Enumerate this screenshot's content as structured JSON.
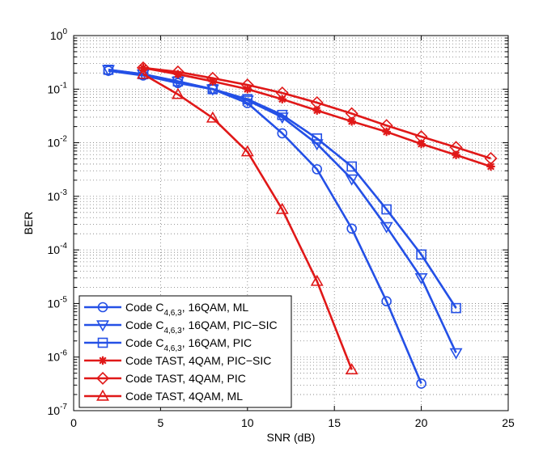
{
  "chart_data": {
    "type": "line",
    "title": "",
    "xlabel": "SNR (dB)",
    "ylabel": "BER",
    "xlim": [
      0,
      25
    ],
    "ylim_log10": [
      -7,
      0
    ],
    "yscale": "log",
    "grid": true,
    "legend_position": "bottom-left",
    "x_ticks": [
      0,
      5,
      10,
      15,
      20,
      25
    ],
    "x_tick_labels": [
      "0",
      "5",
      "10",
      "15",
      "20",
      "25"
    ],
    "y_tick_labels": [
      {
        "base": "10",
        "exp": "-7"
      },
      {
        "base": "10",
        "exp": "-6"
      },
      {
        "base": "10",
        "exp": "-5"
      },
      {
        "base": "10",
        "exp": "-4"
      },
      {
        "base": "10",
        "exp": "-3"
      },
      {
        "base": "10",
        "exp": "-2"
      },
      {
        "base": "10",
        "exp": "-1"
      },
      {
        "base": "10",
        "exp": "0"
      }
    ],
    "colors": {
      "blue": "#2450e6",
      "red": "#e01818"
    },
    "series": [
      {
        "name": "Code C 4,6,3 16QAM ML",
        "label_prefix": "Code C",
        "label_sub": "4,6,3",
        "label_suffix": ", 16QAM, ML",
        "color": "#2450e6",
        "marker": "circle",
        "x": [
          2,
          4,
          6,
          8,
          10,
          12,
          14,
          16,
          18,
          20
        ],
        "y": [
          0.22,
          0.18,
          0.13,
          0.1,
          0.055,
          0.015,
          0.0032,
          0.00025,
          1.1e-05,
          3.2e-07
        ]
      },
      {
        "name": "Code C 4,6,3 16QAM PIC-SIC",
        "label_prefix": "Code C",
        "label_sub": "4,6,3",
        "label_suffix": ", 16QAM, PIC−SIC",
        "color": "#2450e6",
        "marker": "triangle-down",
        "x": [
          2,
          4,
          6,
          8,
          10,
          12,
          14,
          16,
          18,
          20,
          22
        ],
        "y": [
          0.23,
          0.19,
          0.14,
          0.1,
          0.062,
          0.03,
          0.0095,
          0.0021,
          0.00027,
          3e-05,
          1.2e-06
        ]
      },
      {
        "name": "Code C 4,6,3 16QAM PIC",
        "label_prefix": "Code C",
        "label_sub": "4,6,3",
        "label_suffix": ", 16QAM, PIC",
        "color": "#2450e6",
        "marker": "square",
        "x": [
          2,
          4,
          6,
          8,
          10,
          12,
          14,
          16,
          18,
          20,
          22
        ],
        "y": [
          0.23,
          0.19,
          0.14,
          0.1,
          0.065,
          0.033,
          0.012,
          0.0036,
          0.00057,
          8.2e-05,
          8.2e-06
        ]
      },
      {
        "name": "Code TAST 4QAM PIC-SIC",
        "label_prefix": "Code TAST, 4QAM, PIC−SIC",
        "label_sub": "",
        "label_suffix": "",
        "color": "#e01818",
        "marker": "asterisk",
        "x": [
          4,
          6,
          8,
          10,
          12,
          14,
          16,
          18,
          20,
          22,
          24
        ],
        "y": [
          0.25,
          0.19,
          0.14,
          0.1,
          0.065,
          0.04,
          0.025,
          0.016,
          0.0095,
          0.0059,
          0.0036
        ]
      },
      {
        "name": "Code TAST 4QAM PIC",
        "label_prefix": "Code TAST, 4QAM, PIC",
        "label_sub": "",
        "label_suffix": "",
        "color": "#e01818",
        "marker": "diamond",
        "x": [
          4,
          6,
          8,
          10,
          12,
          14,
          16,
          18,
          20,
          22,
          24
        ],
        "y": [
          0.25,
          0.21,
          0.16,
          0.12,
          0.085,
          0.056,
          0.035,
          0.021,
          0.013,
          0.0082,
          0.0051
        ]
      },
      {
        "name": "Code TAST 4QAM ML",
        "label_prefix": "Code TAST, 4QAM, ML",
        "label_sub": "",
        "label_suffix": "",
        "color": "#e01818",
        "marker": "triangle-up",
        "x": [
          4,
          6,
          8,
          10,
          12,
          14,
          16
        ],
        "y": [
          0.19,
          0.08,
          0.029,
          0.0068,
          0.00057,
          2.6e-05,
          5.8e-07
        ]
      }
    ]
  }
}
